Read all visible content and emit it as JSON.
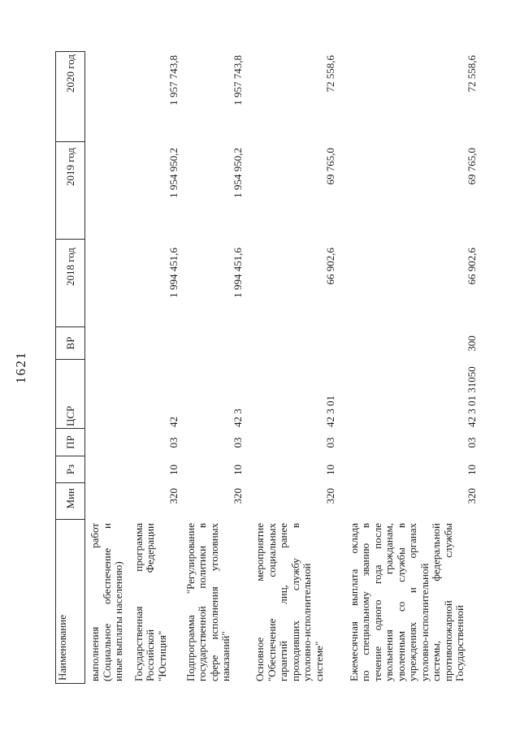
{
  "page_number": "1621",
  "colors": {
    "paper": "#ffffff",
    "ink": "#1c1c1c",
    "table_border": "#2e2e2e"
  },
  "table": {
    "columns": [
      {
        "key": "name",
        "label": "Наименование"
      },
      {
        "key": "min",
        "label": "Мин"
      },
      {
        "key": "rz",
        "label": "Рз"
      },
      {
        "key": "pr",
        "label": "ПР"
      },
      {
        "key": "csr",
        "label": "ЦСР"
      },
      {
        "key": "vr",
        "label": "ВР"
      },
      {
        "key": "y2018",
        "label": "2018 год"
      },
      {
        "key": "y2019",
        "label": "2019 год"
      },
      {
        "key": "y2020",
        "label": "2020 год"
      }
    ],
    "rows": [
      {
        "tail": true,
        "name_lines": [
          "выполнения работ",
          "(Социальное обеспечение и",
          "иные выплаты населению)"
        ],
        "min": "",
        "rz": "",
        "pr": "",
        "csr": "",
        "vr": "",
        "y2018": "",
        "y2019": "",
        "y2020": ""
      },
      {
        "name_lines": [
          "Государственная программа",
          "Российской Федерации",
          "\"Юстиция\""
        ],
        "min": "320",
        "rz": "10",
        "pr": "03",
        "csr": "42",
        "vr": "",
        "y2018": "1 994 451,6",
        "y2019": "1 954 950,2",
        "y2020": "1 957 743,8"
      },
      {
        "name_lines": [
          "Подпрограмма \"Регулирование",
          "государственной политики в",
          "сфере исполнения уголовных",
          "наказаний\""
        ],
        "min": "320",
        "rz": "10",
        "pr": "03",
        "csr": "42 3",
        "vr": "",
        "y2018": "1 994 451,6",
        "y2019": "1 954 950,2",
        "y2020": "1 957 743,8"
      },
      {
        "name_lines": [
          "Основное мероприятие",
          "\"Обеспечение социальных",
          "гарантий лиц, ранее",
          "проходивших службу в",
          "уголовно-исполнительной",
          "системе\""
        ],
        "min": "320",
        "rz": "10",
        "pr": "03",
        "csr": "42 3 01",
        "vr": "",
        "y2018": "66 902,6",
        "y2019": "69 765,0",
        "y2020": "72 558,6"
      },
      {
        "name_lines": [
          "Ежемесячная выплата оклада",
          "по специальному званию в",
          "течение одного года после",
          "увольнения гражданам,",
          "уволенным со службы в",
          "учреждениях и органах",
          "уголовно-исполнительной",
          "системы, федеральной",
          "противопожарной службы",
          "Государственной"
        ],
        "min": "320",
        "rz": "10",
        "pr": "03",
        "csr": "42 3 01 31050",
        "vr": "300",
        "y2018": "66 902,6",
        "y2019": "69 765,0",
        "y2020": "72 558,6"
      }
    ]
  }
}
